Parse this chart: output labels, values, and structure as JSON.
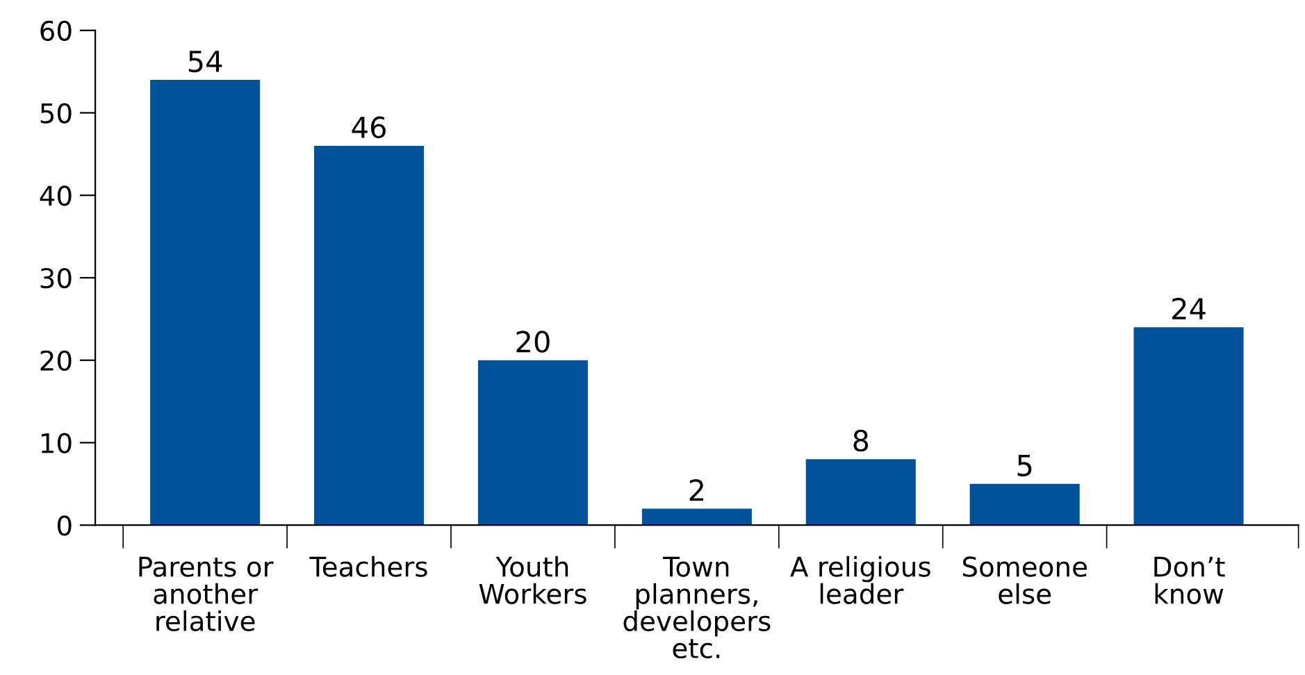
{
  "chart_data": {
    "type": "bar",
    "categories": [
      "Parents or\nanother\nrelative",
      "Teachers",
      "Youth\nWorkers",
      "Town\nplanners,\ndevelopers\netc.",
      "A religious\nleader",
      "Someone\nelse",
      "Don’t\nknow"
    ],
    "values": [
      54,
      46,
      20,
      2,
      8,
      5,
      24
    ],
    "color": "#00529b",
    "ylim": [
      0,
      60
    ],
    "yticks": [
      0,
      10,
      20,
      30,
      40,
      50,
      60
    ],
    "data_labels": true,
    "grid": false,
    "legend": false
  }
}
